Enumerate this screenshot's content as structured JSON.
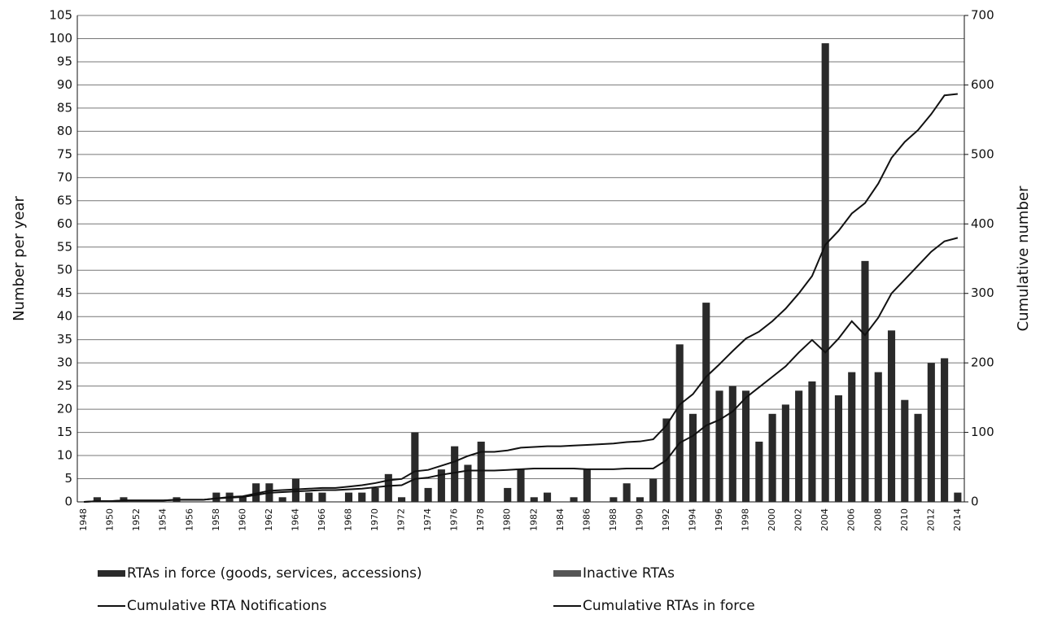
{
  "chart_data": {
    "type": "bar_line",
    "y_label": "Number per year",
    "y2_label": "Cumulative number",
    "categories": [
      "1948",
      null,
      "1950",
      null,
      "1952",
      null,
      "1954",
      null,
      "1956",
      null,
      "1958",
      null,
      "1960",
      null,
      "1962",
      null,
      "1964",
      null,
      "1966",
      null,
      "1968",
      null,
      "1970",
      null,
      "1972",
      null,
      "1974",
      null,
      "1976",
      null,
      "1978",
      null,
      "1980",
      null,
      "1982",
      null,
      "1984",
      null,
      "1986",
      null,
      "1988",
      null,
      "1990",
      null,
      "1992",
      null,
      "1994",
      null,
      "1996",
      null,
      "1998",
      null,
      "2000",
      null,
      "2002",
      null,
      "2004",
      null,
      "2006",
      null,
      "2008",
      null,
      "2010",
      null,
      "2012",
      null,
      "2014"
    ],
    "series": [
      {
        "name": "RTAs in force (goods, services, accessions)",
        "color": "#2a2a2a",
        "kind": "bar",
        "values": [
          0,
          1,
          0,
          1,
          0,
          0,
          0,
          1,
          0,
          0,
          2,
          2,
          1,
          4,
          4,
          1,
          5,
          2,
          2,
          0,
          2,
          2,
          3,
          6,
          1,
          15,
          3,
          7,
          12,
          8,
          13,
          0,
          3,
          7,
          1,
          2,
          0,
          1,
          7,
          0,
          1,
          4,
          1,
          5,
          18,
          34,
          19,
          43,
          24,
          25,
          24,
          13,
          19,
          21,
          24,
          26,
          99,
          23,
          28,
          52,
          28,
          37,
          22,
          19,
          30,
          31,
          2
        ]
      },
      {
        "name": "Inactive RTAs",
        "color": "#555555",
        "kind": "bar",
        "values": [
          0,
          0,
          0,
          0,
          0,
          0,
          0,
          0,
          0,
          0,
          0,
          0,
          0,
          0,
          0,
          0,
          0,
          0,
          0,
          0,
          0,
          0,
          0,
          0,
          0,
          0,
          0,
          0,
          0,
          0,
          0,
          0,
          0,
          0,
          0,
          0,
          0,
          0,
          0,
          0,
          0,
          0,
          0,
          0,
          0,
          0,
          0,
          0,
          0,
          0,
          0,
          0,
          0,
          0,
          0,
          0,
          0,
          0,
          0,
          0,
          0,
          0,
          0,
          0,
          0,
          0,
          0
        ]
      },
      {
        "name": "Cumulative RTA Notifications",
        "color": "#111111",
        "kind": "line",
        "axis": "y2",
        "values": [
          0,
          1,
          1,
          2,
          2,
          2,
          2,
          3,
          3,
          3,
          5,
          7,
          8,
          12,
          16,
          17,
          18,
          19,
          20,
          20,
          22,
          24,
          27,
          31,
          33,
          44,
          46,
          52,
          58,
          66,
          72,
          72,
          74,
          78,
          79,
          80,
          80,
          81,
          82,
          83,
          84,
          86,
          87,
          90,
          110,
          140,
          155,
          180,
          198,
          217,
          235,
          245,
          260,
          278,
          300,
          325,
          370,
          390,
          415,
          430,
          458,
          495,
          518,
          535,
          558,
          585,
          587
        ]
      },
      {
        "name": "Cumulative RTAs in force",
        "color": "#111111",
        "kind": "line",
        "axis": "y2",
        "values": [
          0,
          1,
          1,
          2,
          2,
          2,
          2,
          3,
          3,
          3,
          5,
          6,
          7,
          10,
          13,
          14,
          15,
          16,
          17,
          17,
          18,
          19,
          21,
          23,
          24,
          33,
          35,
          39,
          42,
          45,
          45,
          45,
          46,
          47,
          48,
          48,
          48,
          48,
          47,
          47,
          47,
          48,
          48,
          48,
          60,
          85,
          95,
          110,
          118,
          130,
          150,
          165,
          180,
          195,
          215,
          233,
          215,
          235,
          260,
          240,
          265,
          300,
          320,
          340,
          360,
          375,
          380
        ]
      }
    ],
    "ylim": [
      0,
      105
    ],
    "yticks": [
      0,
      5,
      10,
      15,
      20,
      25,
      30,
      35,
      40,
      45,
      50,
      55,
      60,
      65,
      70,
      75,
      80,
      85,
      90,
      95,
      100,
      105
    ],
    "y2lim": [
      0,
      700
    ],
    "y2ticks": [
      0,
      100,
      200,
      300,
      400,
      500,
      600,
      700
    ],
    "grid": true,
    "legend": "bottom"
  }
}
